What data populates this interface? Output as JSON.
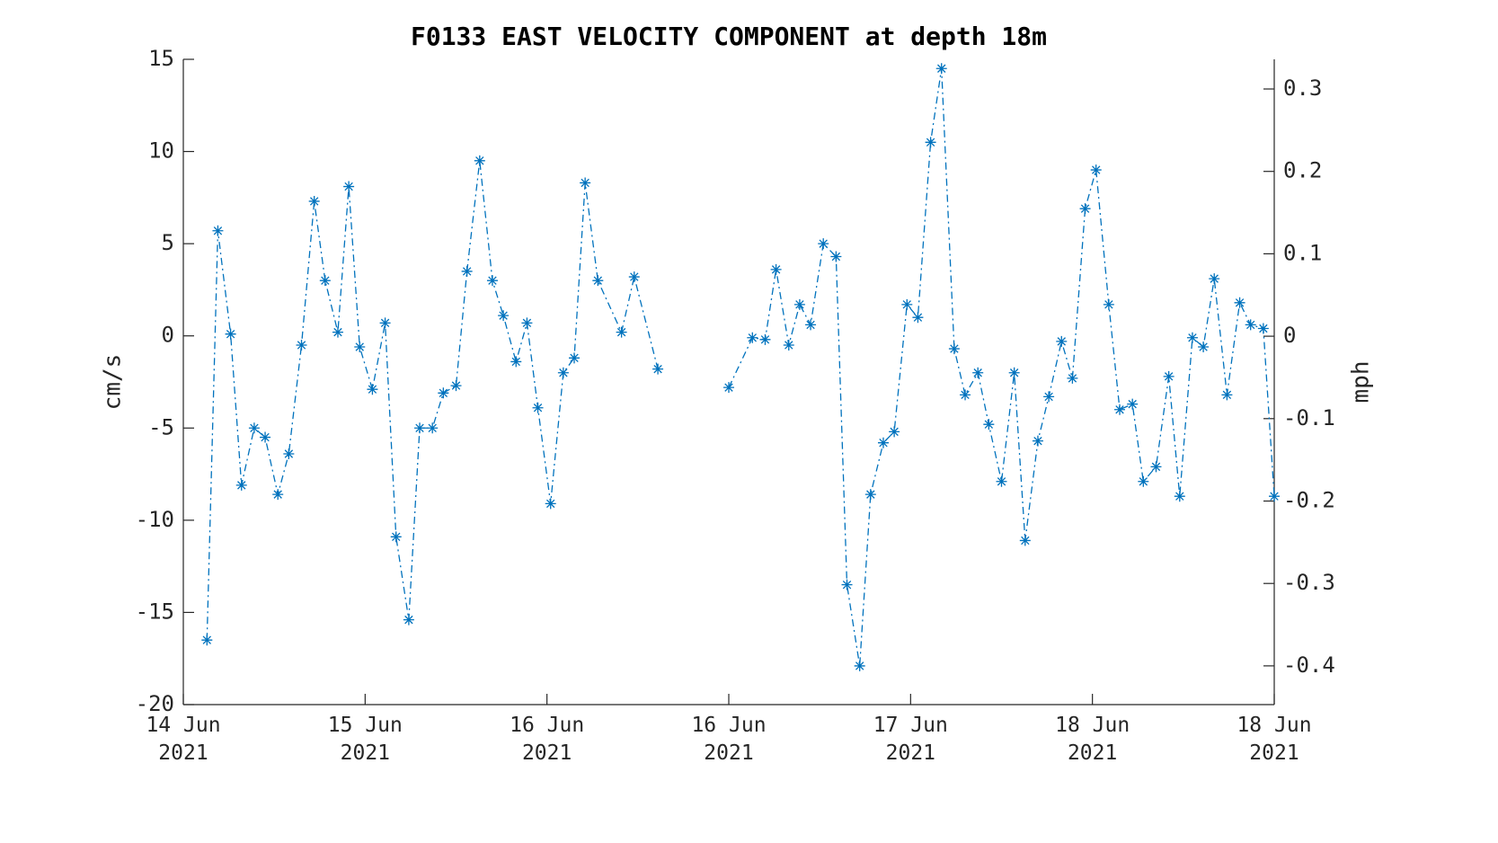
{
  "chart_data": {
    "type": "line",
    "title": "F0133 EAST VELOCITY COMPONENT at depth 18m",
    "ylabel": "cm/s",
    "y2label": "mph",
    "xlim": [
      0,
      6
    ],
    "xticks": [
      {
        "value": 0,
        "label": "14 Jun\n2021"
      },
      {
        "value": 1,
        "label": "15 Jun\n2021"
      },
      {
        "value": 2,
        "label": "16 Jun\n2021"
      },
      {
        "value": 3,
        "label": "16 Jun\n2021"
      },
      {
        "value": 4,
        "label": "17 Jun\n2021"
      },
      {
        "value": 5,
        "label": "18 Jun\n2021"
      },
      {
        "value": 6,
        "label": "18 Jun\n2021"
      }
    ],
    "ylim": [
      -20,
      15
    ],
    "yticks": [
      -20,
      -15,
      -10,
      -5,
      0,
      5,
      10,
      15
    ],
    "y2lim": [
      -0.447,
      0.336
    ],
    "y2ticks": [
      -0.4,
      -0.3,
      -0.2,
      -0.1,
      0,
      0.1,
      0.2,
      0.3
    ],
    "series": [
      {
        "name": "east velocity",
        "color": "#0072bd",
        "x": [
          0.13,
          0.19,
          0.26,
          0.32,
          0.39,
          0.45,
          0.52,
          0.58,
          0.65,
          0.72,
          0.78,
          0.85,
          0.91,
          0.97,
          1.04,
          1.11,
          1.17,
          1.24,
          1.3,
          1.37,
          1.43,
          1.5,
          1.56,
          1.63,
          1.7,
          1.76,
          1.83,
          1.89,
          1.95,
          2.02,
          2.09,
          2.15,
          2.21,
          2.28,
          2.41,
          2.48,
          2.61,
          2.8,
          3.0,
          3.13,
          3.2,
          3.26,
          3.33,
          3.39,
          3.45,
          3.52,
          3.59,
          3.65,
          3.72,
          3.78,
          3.85,
          3.91,
          3.98,
          4.04,
          4.11,
          4.17,
          4.24,
          4.3,
          4.37,
          4.43,
          4.5,
          4.57,
          4.63,
          4.7,
          4.76,
          4.83,
          4.89,
          4.96,
          5.02,
          5.09,
          5.15,
          5.22,
          5.28,
          5.35,
          5.42,
          5.48,
          5.55,
          5.61,
          5.67,
          5.74,
          5.81,
          5.87,
          5.94,
          6.0
        ],
        "values": [
          -16.5,
          5.7,
          0.1,
          -8.1,
          -5,
          -5.5,
          -8.6,
          -6.4,
          -0.5,
          7.3,
          3,
          0.2,
          8.1,
          -0.6,
          -2.9,
          0.7,
          -10.9,
          -15.4,
          -5,
          -5,
          -3.1,
          -2.7,
          3.5,
          9.5,
          3,
          1.1,
          -1.4,
          0.7,
          -3.9,
          -9.1,
          -2,
          -1.2,
          8.3,
          3,
          0.2,
          3.2,
          -1.8,
          null,
          -2.8,
          -0.1,
          -0.2,
          3.6,
          -0.5,
          1.7,
          0.6,
          5,
          4.3,
          -13.5,
          -17.9,
          -8.6,
          -5.8,
          -5.2,
          1.7,
          1,
          10.5,
          14.5,
          -0.7,
          -3.2,
          -2,
          -4.8,
          -7.9,
          -2,
          -11.1,
          -5.7,
          -3.3,
          -0.3,
          -2.3,
          6.9,
          9,
          1.7,
          -4,
          -3.7,
          -7.9,
          -7.1,
          -2.2,
          -8.7,
          -0.1,
          -0.6,
          3.1,
          -3.2,
          1.8,
          0.6,
          0.4,
          -8.7
        ]
      }
    ]
  }
}
